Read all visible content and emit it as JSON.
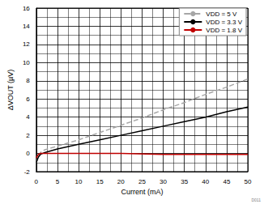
{
  "chart_data": {
    "type": "line",
    "xlabel": "Current (mA)",
    "ylabel": "ΔVOUT (µV)",
    "annotation": "D011",
    "xlim": [
      0,
      50
    ],
    "xticks": [
      0,
      5,
      10,
      15,
      20,
      25,
      30,
      35,
      40,
      45,
      50
    ],
    "ylim": [
      -2,
      16
    ],
    "yticks": [
      -2,
      0,
      2,
      4,
      6,
      8,
      10,
      12,
      14,
      16
    ],
    "grid": true,
    "legend": "upper right",
    "series": [
      {
        "name": "VDD = 5 V",
        "color": "#a6a6a6",
        "line_style": "dashed",
        "x": [
          0,
          0.5,
          1,
          2,
          5,
          10,
          15,
          20,
          25,
          30,
          35,
          40,
          45,
          50
        ],
        "values": [
          -1,
          -0.3,
          0.1,
          0.4,
          0.8,
          1.5,
          2.3,
          3.1,
          3.9,
          4.8,
          5.6,
          6.5,
          7.3,
          8.2
        ]
      },
      {
        "name": "VDD = 3.3 V",
        "color": "#000000",
        "line_style": "solid",
        "x": [
          0,
          0.5,
          1,
          2,
          5,
          10,
          15,
          20,
          25,
          30,
          35,
          40,
          45,
          50
        ],
        "values": [
          -1,
          -0.4,
          -0.1,
          0.1,
          0.5,
          1.0,
          1.5,
          2.0,
          2.5,
          3.0,
          3.5,
          4.0,
          4.6,
          5.1
        ]
      },
      {
        "name": "VDD = 1.8 V",
        "color": "#c00000",
        "line_style": "solid",
        "x": [
          0,
          0.5,
          1,
          5,
          10,
          20,
          30,
          40,
          50
        ],
        "values": [
          -0.5,
          -0.1,
          0,
          0,
          0,
          0,
          -0.1,
          -0.1,
          -0.1
        ]
      }
    ]
  }
}
